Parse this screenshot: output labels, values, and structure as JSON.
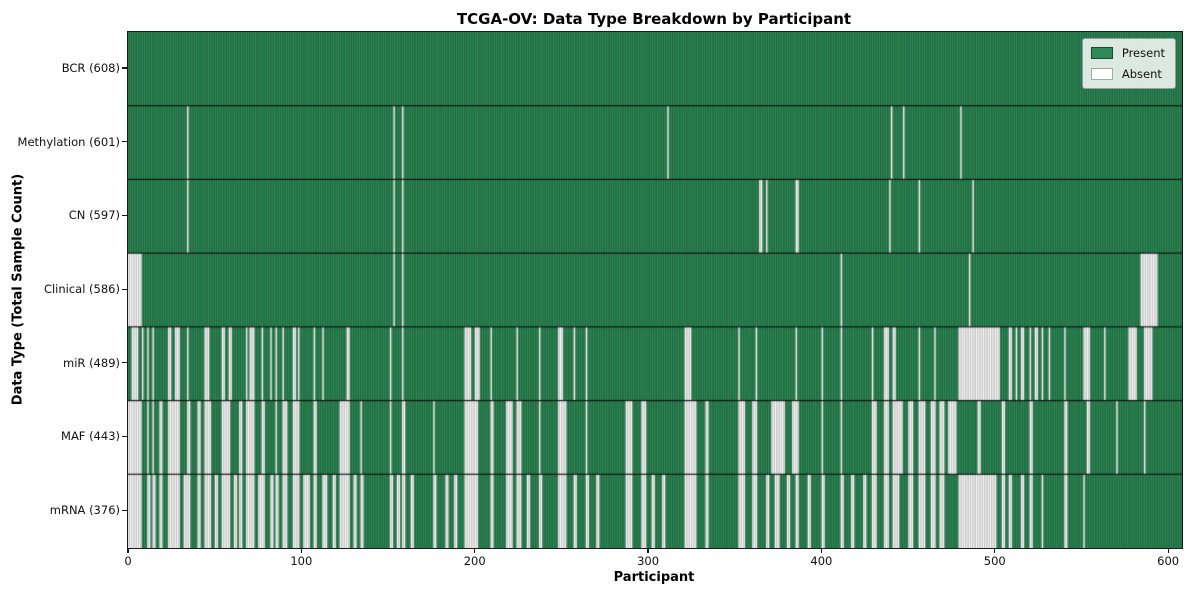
{
  "title": "TCGA-OV: Data Type Breakdown by Participant",
  "xlabel": "Participant",
  "ylabel": "Data Type (Total Sample Count)",
  "legend": {
    "present_label": "Present",
    "absent_label": "Absent"
  },
  "colors": {
    "present": "#2e8b57",
    "absent": "#ffffff",
    "cell_edge": "rgba(0,0,0,0.40)",
    "row_divider": "rgba(0,0,0,0.85)",
    "axis": "#1a1a1a"
  },
  "chart_data": {
    "type": "heatmap",
    "title": "TCGA-OV: Data Type Breakdown by Participant",
    "xlabel": "Participant",
    "ylabel": "Data Type (Total Sample Count)",
    "legend": [
      "Present",
      "Absent"
    ],
    "legend_position": "upper right",
    "n_participants": 608,
    "x_ticks": [
      0,
      100,
      200,
      300,
      400,
      500,
      600
    ],
    "x_range": [
      0,
      608
    ],
    "grid": false,
    "rows": [
      {
        "name": "BCR",
        "label": "BCR (608)",
        "present_count": 608,
        "absent_count": 0,
        "absent_ranges": []
      },
      {
        "name": "Methylation",
        "label": "Methylation (601)",
        "present_count": 601,
        "absent_count": 7,
        "absent_ranges": [
          [
            34,
            34
          ],
          [
            153,
            153
          ],
          [
            158,
            158
          ],
          [
            311,
            311
          ],
          [
            440,
            440
          ],
          [
            447,
            447
          ],
          [
            480,
            480
          ]
        ]
      },
      {
        "name": "CN",
        "label": "CN (597)",
        "present_count": 597,
        "absent_count": 11,
        "absent_ranges": [
          [
            34,
            34
          ],
          [
            153,
            153
          ],
          [
            158,
            158
          ],
          [
            364,
            365
          ],
          [
            368,
            368
          ],
          [
            385,
            386
          ],
          [
            439,
            439
          ],
          [
            456,
            456
          ],
          [
            487,
            487
          ]
        ]
      },
      {
        "name": "Clinical",
        "label": "Clinical (586)",
        "present_count": 586,
        "absent_count": 22,
        "absent_ranges": [
          [
            0,
            7
          ],
          [
            153,
            153
          ],
          [
            158,
            158
          ],
          [
            411,
            411
          ],
          [
            485,
            485
          ],
          [
            584,
            593
          ]
        ]
      },
      {
        "name": "miR",
        "label": "miR (489)",
        "present_count": 489,
        "absent_count": 119,
        "absent_ranges": [
          [
            2,
            5
          ],
          [
            8,
            8
          ],
          [
            11,
            11
          ],
          [
            14,
            14
          ],
          [
            23,
            24
          ],
          [
            27,
            29
          ],
          [
            34,
            34
          ],
          [
            44,
            46
          ],
          [
            54,
            55
          ],
          [
            58,
            59
          ],
          [
            68,
            68
          ],
          [
            70,
            72
          ],
          [
            77,
            77
          ],
          [
            82,
            82
          ],
          [
            85,
            85
          ],
          [
            89,
            89
          ],
          [
            95,
            96
          ],
          [
            98,
            98
          ],
          [
            107,
            107
          ],
          [
            112,
            112
          ],
          [
            126,
            127
          ],
          [
            151,
            151
          ],
          [
            158,
            158
          ],
          [
            194,
            197
          ],
          [
            200,
            202
          ],
          [
            209,
            209
          ],
          [
            224,
            224
          ],
          [
            237,
            237
          ],
          [
            248,
            250
          ],
          [
            257,
            257
          ],
          [
            264,
            264
          ],
          [
            321,
            324
          ],
          [
            352,
            352
          ],
          [
            362,
            362
          ],
          [
            385,
            385
          ],
          [
            400,
            400
          ],
          [
            411,
            411
          ],
          [
            429,
            429
          ],
          [
            436,
            438
          ],
          [
            441,
            442
          ],
          [
            456,
            456
          ],
          [
            465,
            465
          ],
          [
            479,
            502
          ],
          [
            508,
            509
          ],
          [
            512,
            512
          ],
          [
            515,
            516
          ],
          [
            520,
            520
          ],
          [
            523,
            524
          ],
          [
            527,
            527
          ],
          [
            531,
            531
          ],
          [
            540,
            540
          ],
          [
            551,
            554
          ],
          [
            563,
            563
          ],
          [
            577,
            581
          ],
          [
            586,
            590
          ]
        ]
      },
      {
        "name": "MAF",
        "label": "MAF (443)",
        "present_count": 443,
        "absent_count": 165,
        "absent_ranges": [
          [
            0,
            7
          ],
          [
            11,
            11
          ],
          [
            14,
            14
          ],
          [
            18,
            19
          ],
          [
            23,
            29
          ],
          [
            34,
            35
          ],
          [
            40,
            41
          ],
          [
            44,
            47
          ],
          [
            54,
            58
          ],
          [
            64,
            65
          ],
          [
            68,
            72
          ],
          [
            77,
            78
          ],
          [
            85,
            85
          ],
          [
            89,
            91
          ],
          [
            95,
            98
          ],
          [
            107,
            108
          ],
          [
            122,
            127
          ],
          [
            134,
            134
          ],
          [
            151,
            151
          ],
          [
            158,
            159
          ],
          [
            176,
            176
          ],
          [
            194,
            201
          ],
          [
            209,
            210
          ],
          [
            218,
            221
          ],
          [
            224,
            226
          ],
          [
            237,
            237
          ],
          [
            248,
            252
          ],
          [
            264,
            264
          ],
          [
            287,
            290
          ],
          [
            296,
            298
          ],
          [
            321,
            327
          ],
          [
            333,
            334
          ],
          [
            352,
            355
          ],
          [
            360,
            362
          ],
          [
            371,
            378
          ],
          [
            383,
            386
          ],
          [
            400,
            400
          ],
          [
            411,
            411
          ],
          [
            429,
            431
          ],
          [
            436,
            438
          ],
          [
            441,
            446
          ],
          [
            450,
            452
          ],
          [
            456,
            459
          ],
          [
            463,
            465
          ],
          [
            468,
            470
          ],
          [
            473,
            477
          ],
          [
            490,
            491
          ],
          [
            504,
            505
          ],
          [
            520,
            521
          ],
          [
            540,
            541
          ],
          [
            553,
            554
          ],
          [
            570,
            570
          ],
          [
            586,
            586
          ]
        ]
      },
      {
        "name": "mRNA",
        "label": "mRNA (376)",
        "present_count": 376,
        "absent_count": 232,
        "absent_ranges": [
          [
            0,
            7
          ],
          [
            11,
            12
          ],
          [
            14,
            15
          ],
          [
            18,
            19
          ],
          [
            23,
            29
          ],
          [
            32,
            35
          ],
          [
            40,
            41
          ],
          [
            44,
            47
          ],
          [
            50,
            51
          ],
          [
            54,
            58
          ],
          [
            61,
            62
          ],
          [
            64,
            65
          ],
          [
            68,
            72
          ],
          [
            75,
            78
          ],
          [
            82,
            83
          ],
          [
            85,
            86
          ],
          [
            89,
            91
          ],
          [
            95,
            98
          ],
          [
            101,
            104
          ],
          [
            107,
            108
          ],
          [
            112,
            114
          ],
          [
            118,
            119
          ],
          [
            122,
            127
          ],
          [
            130,
            131
          ],
          [
            134,
            135
          ],
          [
            151,
            152
          ],
          [
            155,
            156
          ],
          [
            158,
            159
          ],
          [
            163,
            164
          ],
          [
            176,
            177
          ],
          [
            183,
            184
          ],
          [
            188,
            189
          ],
          [
            194,
            201
          ],
          [
            209,
            210
          ],
          [
            218,
            221
          ],
          [
            224,
            226
          ],
          [
            230,
            231
          ],
          [
            237,
            238
          ],
          [
            248,
            252
          ],
          [
            257,
            258
          ],
          [
            264,
            265
          ],
          [
            270,
            271
          ],
          [
            287,
            290
          ],
          [
            296,
            298
          ],
          [
            302,
            303
          ],
          [
            308,
            309
          ],
          [
            321,
            327
          ],
          [
            333,
            334
          ],
          [
            352,
            355
          ],
          [
            360,
            362
          ],
          [
            368,
            369
          ],
          [
            373,
            375
          ],
          [
            380,
            381
          ],
          [
            385,
            386
          ],
          [
            392,
            393
          ],
          [
            400,
            401
          ],
          [
            411,
            412
          ],
          [
            417,
            418
          ],
          [
            424,
            425
          ],
          [
            429,
            431
          ],
          [
            436,
            438
          ],
          [
            441,
            444
          ],
          [
            450,
            452
          ],
          [
            456,
            459
          ],
          [
            463,
            465
          ],
          [
            468,
            470
          ],
          [
            479,
            500
          ],
          [
            504,
            505
          ],
          [
            508,
            509
          ],
          [
            515,
            516
          ],
          [
            520,
            521
          ],
          [
            527,
            527
          ],
          [
            540,
            541
          ],
          [
            551,
            551
          ]
        ]
      }
    ]
  }
}
